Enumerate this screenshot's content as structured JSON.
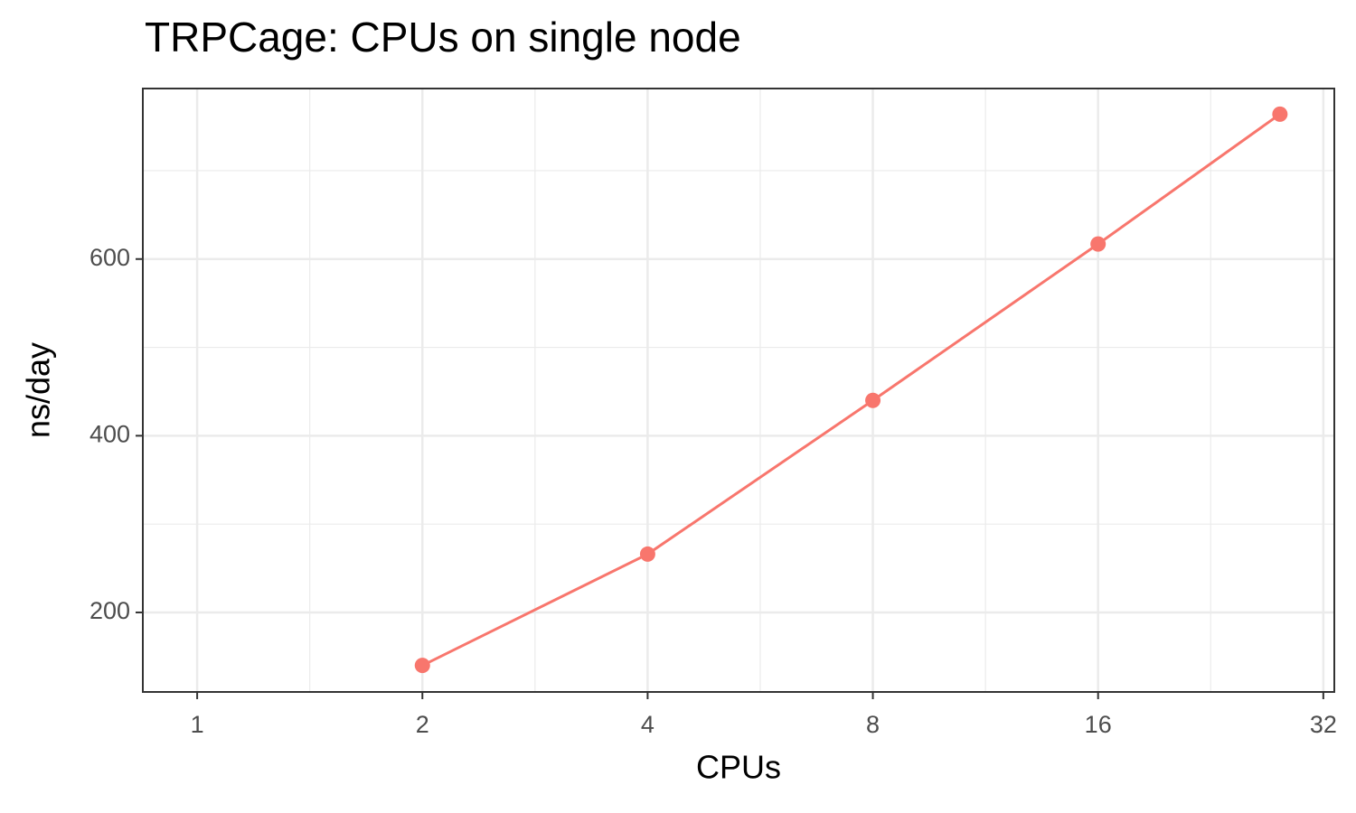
{
  "chart_data": {
    "type": "line",
    "title": "TRPCage: CPUs on single node",
    "x_label": "CPUs",
    "y_label": "ns/day",
    "x": [
      2,
      4,
      8,
      16,
      28
    ],
    "series": [
      {
        "name": "ns/day",
        "color": "#f8766d",
        "values": [
          140,
          266,
          440,
          617,
          764
        ]
      }
    ],
    "x_scale": "log2",
    "xlim": [
      0.846,
      33.1
    ],
    "xticks": [
      1,
      2,
      4,
      8,
      16,
      32
    ],
    "ylim": [
      110,
      793
    ],
    "yticks": [
      200,
      400,
      600
    ],
    "grid": true
  }
}
